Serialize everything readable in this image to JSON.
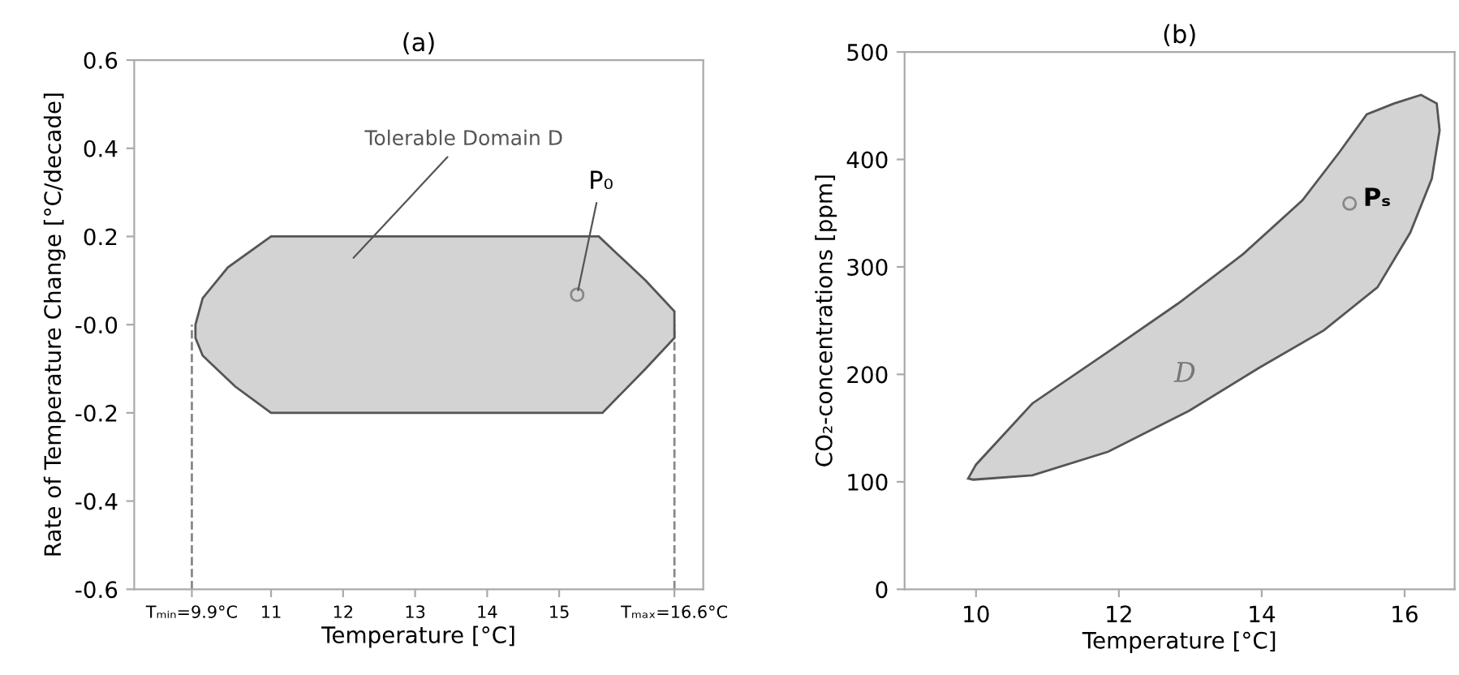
{
  "chart_data": [
    {
      "type": "area",
      "title": "(a)",
      "xlabel": "Temperature [°C]",
      "ylabel": "Rate of Temperature Change [°C/decade]",
      "xlim": [
        9.1,
        17.0
      ],
      "xticks": [
        {
          "value": 9.9,
          "label": "Tₘᵢₙ=9.9°C"
        },
        11,
        12,
        13,
        14,
        15,
        {
          "value": 16.6,
          "label": "Tₘₐₓ=16.6°C"
        }
      ],
      "ylim": [
        -0.6,
        0.6
      ],
      "yticks": [
        -0.6,
        -0.4,
        -0.2,
        {
          "value": 0,
          "label": "-0.0"
        },
        0.2,
        0.4,
        0.6
      ],
      "series": [
        {
          "color": "#d3d3d3",
          "x": [
            11,
            10.4,
            10.05,
            9.95,
            9.95,
            10.05,
            10.5,
            11,
            15.6,
            16.2,
            16.6,
            16.6,
            16.2,
            15.55
          ],
          "values": [
            0.2,
            0.13,
            0.06,
            0.0,
            -0.03,
            -0.07,
            -0.14,
            -0.2,
            -0.2,
            -0.1,
            -0.03,
            0.03,
            0.1,
            0.2
          ]
        },
        {
          "type": "scatter",
          "marker": "circle",
          "color": "#888888",
          "x": [
            15.25
          ],
          "values": [
            0.068
          ]
        }
      ],
      "ref_lines": [
        {
          "axis": "x",
          "value": 9.9,
          "line_style": "dashed",
          "color": "#888888"
        },
        {
          "axis": "x",
          "value": 16.6,
          "line_style": "dashed",
          "color": "#888888"
        }
      ],
      "annotations": [
        "Tolerable Domain D",
        {
          "text": "P₀",
          "x": 15.25,
          "y": 0.068
        }
      ],
      "grid": false
    },
    {
      "type": "area",
      "title": "(b)",
      "xlabel": "Temperature [°C]",
      "ylabel": "CO₂-concentrations [ppm]",
      "xlim": [
        9.0,
        16.7
      ],
      "xticks": [
        10,
        12,
        14,
        16
      ],
      "ylim": [
        0,
        500
      ],
      "yticks": [
        0,
        100,
        200,
        300,
        400,
        500
      ],
      "series": [
        {
          "color": "#d3d3d3",
          "x": [
            9.89,
            10.0,
            10.79,
            11.85,
            12.83,
            13.74,
            14.57,
            15.09,
            15.47,
            15.85,
            16.23,
            16.45,
            16.49,
            16.38,
            16.08,
            15.62,
            14.87,
            13.96,
            12.98,
            11.85,
            10.79,
            9.96
          ],
          "values": [
            103,
            116,
            173,
            221,
            266,
            312,
            362,
            407,
            442,
            452,
            460,
            452,
            427,
            382,
            332,
            281,
            241,
            206,
            166,
            128,
            106,
            102
          ]
        },
        {
          "type": "scatter",
          "marker": "circle",
          "color": "#888888",
          "x": [
            15.23
          ],
          "values": [
            359
          ]
        }
      ],
      "annotations": [
        {
          "text": "Pₛ",
          "x": 15.23,
          "y": 359
        },
        "D"
      ],
      "grid": false
    }
  ]
}
